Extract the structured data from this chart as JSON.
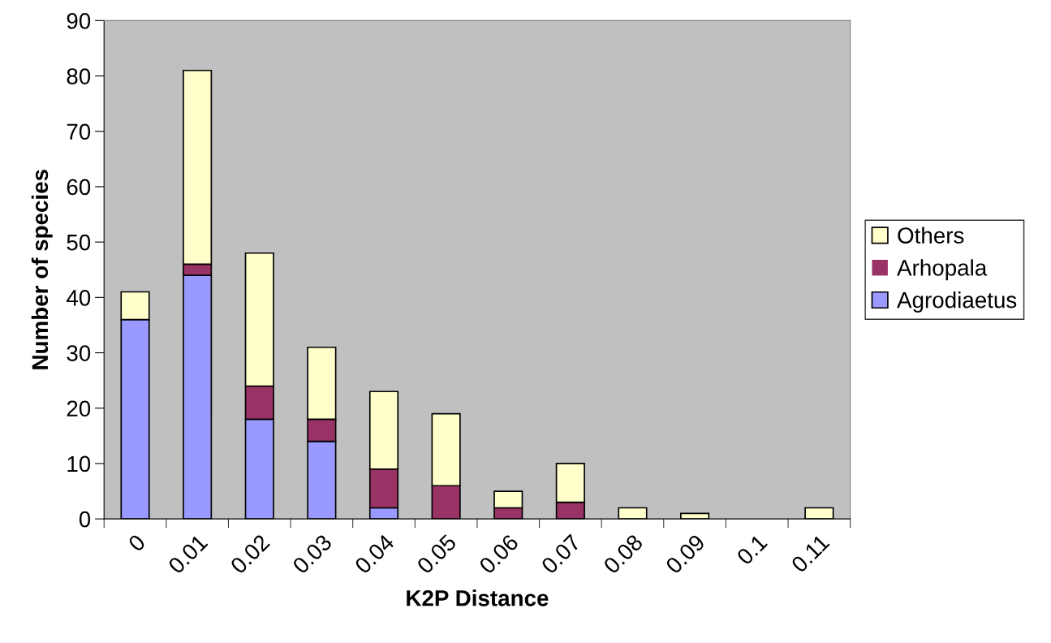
{
  "chart_data": {
    "type": "bar",
    "stacked": true,
    "xlabel": "K2P Distance",
    "ylabel": "Number of species",
    "categories": [
      "0",
      "0.01",
      "0.02",
      "0.03",
      "0.04",
      "0.05",
      "0.06",
      "0.07",
      "0.08",
      "0.09",
      "0.1",
      "0.11"
    ],
    "series": [
      {
        "name": "Agrodiaetus",
        "color": "#9999ff",
        "values": [
          36,
          44,
          18,
          14,
          2,
          0,
          0,
          0,
          0,
          0,
          0,
          0
        ]
      },
      {
        "name": "Arhopala",
        "color": "#993366",
        "values": [
          0,
          2,
          6,
          4,
          7,
          6,
          2,
          3,
          0,
          0,
          0,
          0
        ]
      },
      {
        "name": "Others",
        "color": "#ffffcc",
        "values": [
          5,
          35,
          24,
          13,
          14,
          13,
          3,
          7,
          2,
          1,
          0,
          2
        ]
      }
    ],
    "ylim": [
      0,
      90
    ],
    "yticks": [
      0,
      10,
      20,
      30,
      40,
      50,
      60,
      70,
      80,
      90
    ],
    "grid": false,
    "legend": "right"
  }
}
